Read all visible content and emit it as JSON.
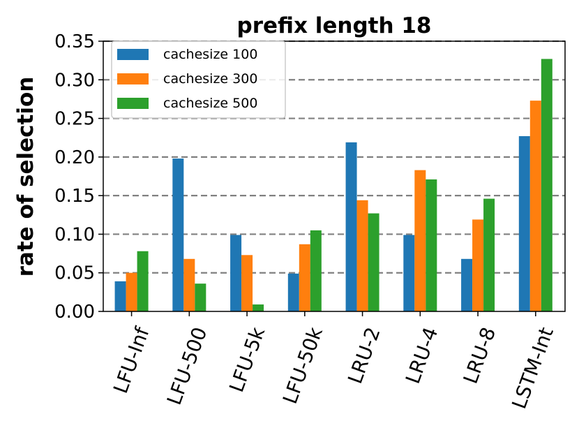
{
  "chart_data": {
    "type": "bar",
    "title": "prefix length 18",
    "xlabel": "",
    "ylabel": "rate of selection",
    "ylim": [
      0,
      0.35
    ],
    "yticks": [
      "0.00",
      "0.05",
      "0.10",
      "0.15",
      "0.20",
      "0.25",
      "0.30",
      "0.35"
    ],
    "grid": "horizontal dashed",
    "legend_position": "top-left",
    "categories": [
      "LFU-Inf",
      "LFU-500",
      "LFU-5k",
      "LFU-50k",
      "LRU-2",
      "LRU-4",
      "LRU-8",
      "LSTM-Int"
    ],
    "series": [
      {
        "name": "cachesize 100",
        "color": "#1f77b4",
        "values": [
          0.039,
          0.198,
          0.099,
          0.049,
          0.219,
          0.099,
          0.068,
          0.227
        ]
      },
      {
        "name": "cachesize 300",
        "color": "#ff7f0e",
        "values": [
          0.05,
          0.068,
          0.073,
          0.087,
          0.144,
          0.183,
          0.119,
          0.273
        ]
      },
      {
        "name": "cachesize 500",
        "color": "#2ca02c",
        "values": [
          0.078,
          0.036,
          0.009,
          0.105,
          0.127,
          0.171,
          0.146,
          0.327
        ]
      }
    ]
  }
}
